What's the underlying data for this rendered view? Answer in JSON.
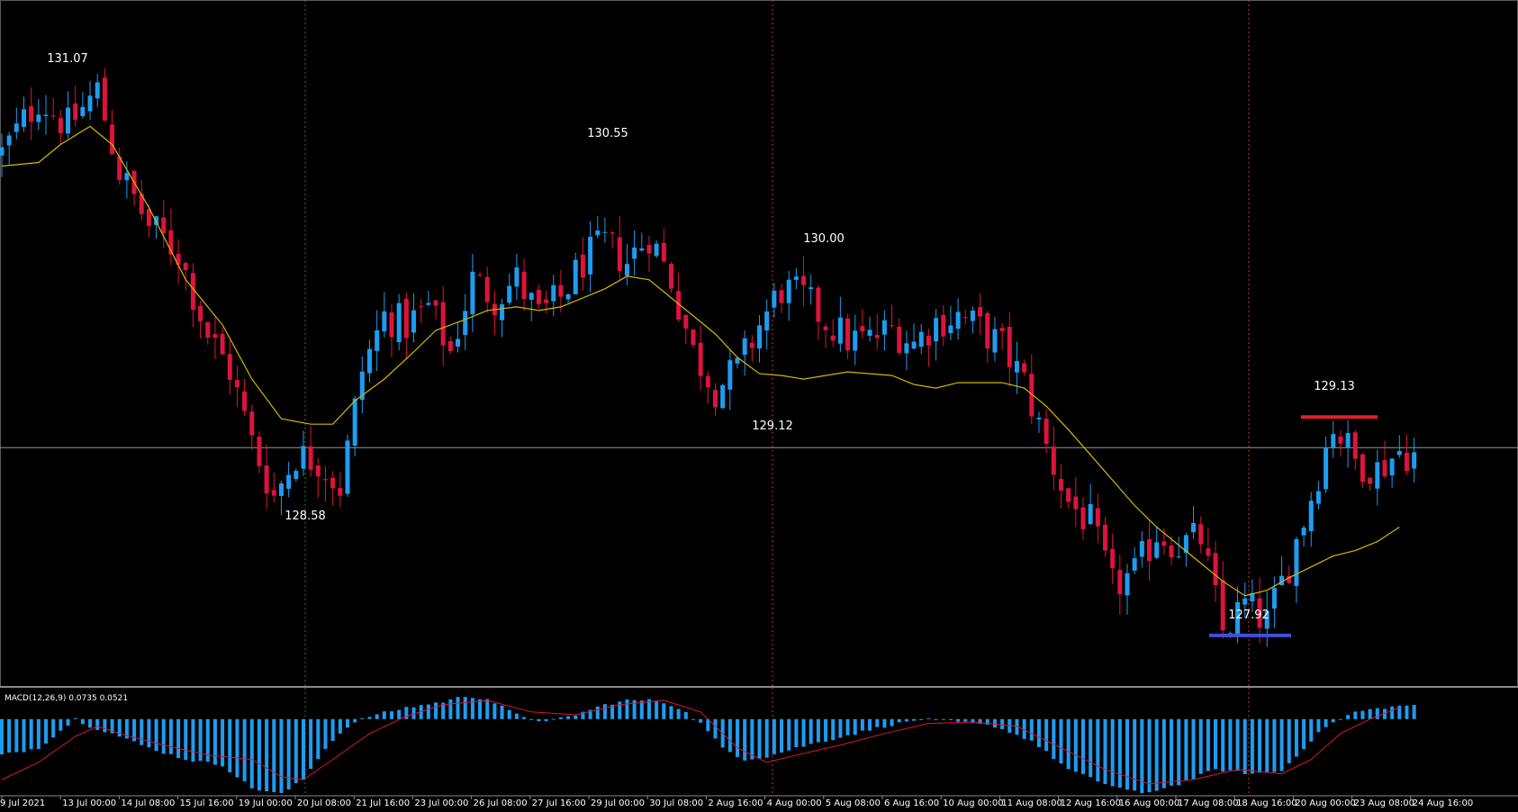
{
  "chart_data": [
    {
      "type": "candlestick",
      "instrument_axis": "price",
      "ylim": [
        127.7,
        131.5
      ],
      "x_tick_labels": [
        "9 Jul 2021",
        "13 Jul 00:00",
        "14 Jul 08:00",
        "15 Jul 16:00",
        "19 Jul 00:00",
        "20 Jul 08:00",
        "21 Jul 16:00",
        "23 Jul 00:00",
        "26 Jul 08:00",
        "27 Jul 16:00",
        "29 Jul 00:00",
        "30 Jul 08:00",
        "2 Aug 16:00",
        "4 Aug 00:00",
        "5 Aug 08:00",
        "6 Aug 16:00",
        "10 Aug 00:00",
        "11 Aug 08:00",
        "12 Aug 16:00",
        "16 Aug 00:00",
        "17 Aug 08:00",
        "18 Aug 16:00",
        "20 Aug 00:00",
        "23 Aug 08:00",
        "24 Aug 16:00"
      ],
      "price_annotations": [
        {
          "text": "131.07",
          "value": 131.07,
          "kind": "high"
        },
        {
          "text": "130.55",
          "value": 130.55,
          "kind": "high"
        },
        {
          "text": "130.00",
          "value": 130.0,
          "kind": "high"
        },
        {
          "text": "129.12",
          "value": 129.12,
          "kind": "low"
        },
        {
          "text": "128.58",
          "value": 128.58,
          "kind": "low"
        },
        {
          "text": "127.92",
          "value": 127.92,
          "kind": "low"
        },
        {
          "text": "129.13",
          "value": 129.13,
          "kind": "high"
        }
      ],
      "horizontal_line": 129.02,
      "support_line": {
        "value": 127.98,
        "color": "#3f4fd8"
      },
      "resistance_line": {
        "value": 129.19,
        "color": "#e0202a"
      },
      "moving_average_color": "#d4b800",
      "bull_color": "#1e9cf0",
      "bear_color": "#dc143c",
      "close_path": [
        [
          0,
          130.65
        ],
        [
          5,
          130.95
        ],
        [
          9,
          130.8
        ],
        [
          13,
          131.0
        ],
        [
          16,
          130.55
        ],
        [
          20,
          130.25
        ],
        [
          24,
          130.1
        ],
        [
          28,
          129.65
        ],
        [
          31,
          129.45
        ],
        [
          34,
          129.05
        ],
        [
          37,
          128.75
        ],
        [
          40,
          128.98
        ],
        [
          43,
          128.95
        ],
        [
          46,
          128.8
        ],
        [
          49,
          129.45
        ],
        [
          52,
          129.75
        ],
        [
          55,
          129.7
        ],
        [
          58,
          129.8
        ],
        [
          61,
          129.55
        ],
        [
          64,
          129.95
        ],
        [
          67,
          129.85
        ],
        [
          70,
          129.95
        ],
        [
          73,
          129.75
        ],
        [
          76,
          129.85
        ],
        [
          79,
          130.05
        ],
        [
          82,
          130.15
        ],
        [
          85,
          130.05
        ],
        [
          88,
          130.2
        ],
        [
          91,
          129.95
        ],
        [
          94,
          129.55
        ],
        [
          97,
          129.35
        ],
        [
          100,
          129.45
        ],
        [
          103,
          129.7
        ],
        [
          106,
          129.9
        ],
        [
          109,
          129.85
        ],
        [
          112,
          129.72
        ],
        [
          115,
          129.62
        ],
        [
          118,
          129.62
        ],
        [
          121,
          129.68
        ],
        [
          124,
          129.6
        ],
        [
          127,
          129.72
        ],
        [
          130,
          129.75
        ],
        [
          133,
          129.68
        ],
        [
          136,
          129.58
        ],
        [
          139,
          129.38
        ],
        [
          142,
          129.02
        ],
        [
          145,
          128.72
        ],
        [
          148,
          128.6
        ],
        [
          151,
          128.25
        ],
        [
          154,
          128.32
        ],
        [
          157,
          128.55
        ],
        [
          160,
          128.48
        ],
        [
          163,
          128.52
        ],
        [
          166,
          128.0
        ],
        [
          169,
          128.15
        ],
        [
          172,
          128.05
        ],
        [
          175,
          128.38
        ],
        [
          178,
          128.75
        ],
        [
          181,
          129.15
        ],
        [
          184,
          128.95
        ],
        [
          187,
          128.9
        ],
        [
          190,
          129.0
        ],
        [
          192,
          128.98
        ]
      ],
      "ma_path": [
        [
          0,
          130.58
        ],
        [
          5,
          130.6
        ],
        [
          8,
          130.7
        ],
        [
          12,
          130.8
        ],
        [
          15,
          130.7
        ],
        [
          20,
          130.35
        ],
        [
          25,
          129.95
        ],
        [
          30,
          129.7
        ],
        [
          34,
          129.4
        ],
        [
          38,
          129.18
        ],
        [
          42,
          129.15
        ],
        [
          45,
          129.15
        ],
        [
          48,
          129.28
        ],
        [
          52,
          129.4
        ],
        [
          56,
          129.55
        ],
        [
          59,
          129.67
        ],
        [
          63,
          129.73
        ],
        [
          66,
          129.78
        ],
        [
          70,
          129.8
        ],
        [
          73,
          129.78
        ],
        [
          76,
          129.8
        ],
        [
          79,
          129.85
        ],
        [
          82,
          129.9
        ],
        [
          85,
          129.97
        ],
        [
          88,
          129.95
        ],
        [
          91,
          129.85
        ],
        [
          94,
          129.75
        ],
        [
          97,
          129.65
        ],
        [
          100,
          129.52
        ],
        [
          103,
          129.43
        ],
        [
          106,
          129.42
        ],
        [
          109,
          129.4
        ],
        [
          112,
          129.42
        ],
        [
          115,
          129.44
        ],
        [
          118,
          129.43
        ],
        [
          121,
          129.42
        ],
        [
          124,
          129.37
        ],
        [
          127,
          129.35
        ],
        [
          130,
          129.38
        ],
        [
          133,
          129.38
        ],
        [
          136,
          129.38
        ],
        [
          139,
          129.35
        ],
        [
          142,
          129.25
        ],
        [
          145,
          129.12
        ],
        [
          148,
          128.98
        ],
        [
          151,
          128.84
        ],
        [
          154,
          128.7
        ],
        [
          157,
          128.58
        ],
        [
          160,
          128.48
        ],
        [
          163,
          128.38
        ],
        [
          166,
          128.28
        ],
        [
          169,
          128.2
        ],
        [
          172,
          128.23
        ],
        [
          175,
          128.3
        ],
        [
          178,
          128.36
        ],
        [
          181,
          128.42
        ],
        [
          184,
          128.45
        ],
        [
          187,
          128.5
        ],
        [
          190,
          128.58
        ]
      ],
      "candle_count": 193
    },
    {
      "type": "bar+line",
      "title": "MACD(12,26,9) 0.0735 0.0521",
      "ylim": [
        -0.52,
        0.18
      ],
      "zero_line_value": 0,
      "histogram_color": "#1e9cf0",
      "signal_color": "#dc143c",
      "histogram_path": [
        [
          0,
          -0.25
        ],
        [
          5,
          -0.2
        ],
        [
          8,
          -0.08
        ],
        [
          10,
          0.0
        ],
        [
          12,
          -0.05
        ],
        [
          15,
          -0.1
        ],
        [
          20,
          -0.2
        ],
        [
          25,
          -0.28
        ],
        [
          30,
          -0.32
        ],
        [
          34,
          -0.48
        ],
        [
          38,
          -0.52
        ],
        [
          41,
          -0.42
        ],
        [
          44,
          -0.2
        ],
        [
          47,
          -0.05
        ],
        [
          50,
          0.02
        ],
        [
          55,
          0.08
        ],
        [
          60,
          0.12
        ],
        [
          63,
          0.16
        ],
        [
          66,
          0.14
        ],
        [
          70,
          0.03
        ],
        [
          74,
          -0.02
        ],
        [
          78,
          0.03
        ],
        [
          82,
          0.1
        ],
        [
          85,
          0.13
        ],
        [
          89,
          0.13
        ],
        [
          92,
          0.08
        ],
        [
          95,
          -0.03
        ],
        [
          98,
          -0.2
        ],
        [
          101,
          -0.28
        ],
        [
          104,
          -0.26
        ],
        [
          108,
          -0.2
        ],
        [
          112,
          -0.15
        ],
        [
          116,
          -0.1
        ],
        [
          120,
          -0.05
        ],
        [
          125,
          0.0
        ],
        [
          130,
          -0.02
        ],
        [
          135,
          -0.05
        ],
        [
          140,
          -0.15
        ],
        [
          145,
          -0.35
        ],
        [
          150,
          -0.45
        ],
        [
          155,
          -0.52
        ],
        [
          160,
          -0.45
        ],
        [
          165,
          -0.35
        ],
        [
          170,
          -0.38
        ],
        [
          174,
          -0.36
        ],
        [
          177,
          -0.2
        ],
        [
          180,
          -0.05
        ],
        [
          184,
          0.05
        ],
        [
          188,
          0.08
        ],
        [
          192,
          0.1
        ]
      ],
      "signal_path": [
        [
          0,
          -0.42
        ],
        [
          5,
          -0.3
        ],
        [
          10,
          -0.12
        ],
        [
          13,
          -0.05
        ],
        [
          16,
          -0.1
        ],
        [
          22,
          -0.18
        ],
        [
          28,
          -0.25
        ],
        [
          34,
          -0.28
        ],
        [
          38,
          -0.4
        ],
        [
          41,
          -0.42
        ],
        [
          45,
          -0.28
        ],
        [
          50,
          -0.1
        ],
        [
          55,
          0.02
        ],
        [
          60,
          0.1
        ],
        [
          66,
          0.13
        ],
        [
          72,
          0.05
        ],
        [
          78,
          0.03
        ],
        [
          84,
          0.1
        ],
        [
          90,
          0.13
        ],
        [
          95,
          0.05
        ],
        [
          100,
          -0.2
        ],
        [
          104,
          -0.3
        ],
        [
          108,
          -0.25
        ],
        [
          114,
          -0.18
        ],
        [
          120,
          -0.1
        ],
        [
          126,
          -0.03
        ],
        [
          132,
          -0.02
        ],
        [
          138,
          -0.05
        ],
        [
          144,
          -0.2
        ],
        [
          150,
          -0.35
        ],
        [
          156,
          -0.45
        ],
        [
          162,
          -0.42
        ],
        [
          168,
          -0.35
        ],
        [
          174,
          -0.38
        ],
        [
          178,
          -0.28
        ],
        [
          182,
          -0.1
        ],
        [
          186,
          0.0
        ],
        [
          190,
          0.08
        ]
      ]
    }
  ]
}
